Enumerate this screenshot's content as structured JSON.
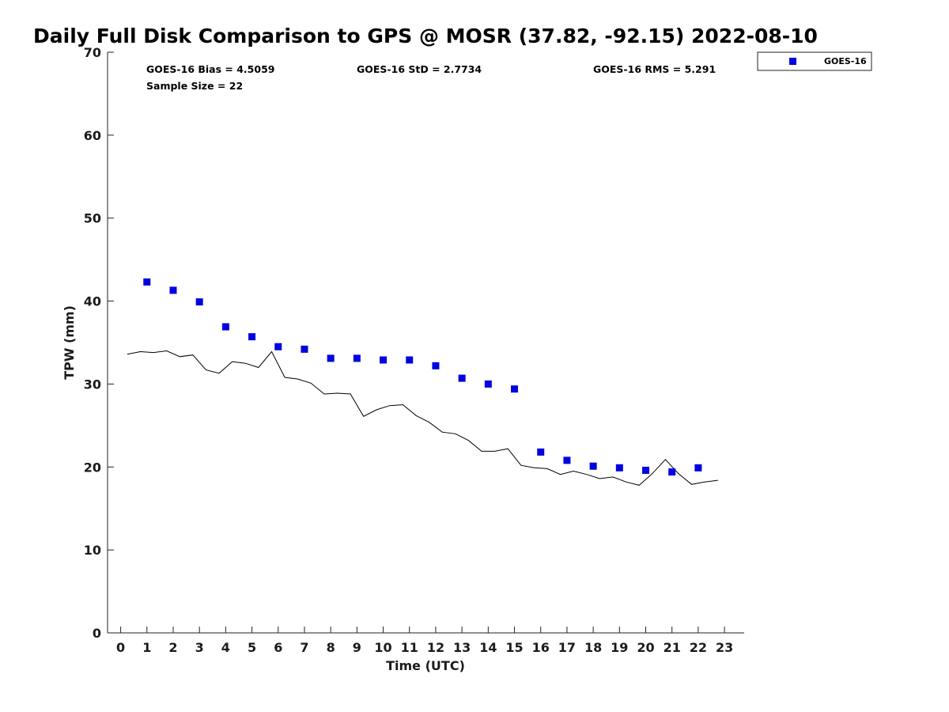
{
  "chart_data": {
    "type": "scatter",
    "title": "Daily Full Disk Comparison to GPS @ MOSR (37.82, -92.15) 2022-08-10",
    "xlabel": "Time (UTC)",
    "ylabel": "TPW (mm)",
    "xlim": [
      -0.5,
      23.75
    ],
    "ylim": [
      0,
      70
    ],
    "xticks": [
      "0",
      "1",
      "2",
      "3",
      "4",
      "5",
      "6",
      "7",
      "8",
      "9",
      "10",
      "11",
      "12",
      "13",
      "14",
      "15",
      "16",
      "17",
      "18",
      "19",
      "20",
      "21",
      "22",
      "23"
    ],
    "yticks": [
      "0",
      "10",
      "20",
      "30",
      "40",
      "50",
      "60",
      "70"
    ],
    "grid": false,
    "legend_position": "top-right",
    "stats": {
      "bias": "GOES-16 Bias = 4.5059",
      "std": "GOES-16 StD = 2.7734",
      "rms": "GOES-16 RMS = 5.291",
      "sample": "Sample Size = 22"
    },
    "series": [
      {
        "name": "GOES-16",
        "kind": "scatter",
        "marker": "square",
        "color": "#0000e0",
        "x": [
          1,
          2,
          3,
          4,
          5,
          6,
          7,
          8,
          9,
          10,
          11,
          12,
          13,
          14,
          15,
          16,
          17,
          18,
          19,
          20,
          21,
          22
        ],
        "y": [
          42.3,
          41.3,
          39.9,
          36.9,
          35.7,
          34.5,
          34.2,
          33.1,
          33.1,
          32.9,
          32.9,
          32.2,
          30.7,
          30.0,
          29.4,
          21.8,
          20.8,
          20.1,
          19.9,
          19.6,
          19.4,
          19.9
        ]
      },
      {
        "kind": "line",
        "color": "#000000",
        "x": [
          0.25,
          0.75,
          1.25,
          1.75,
          2.25,
          2.75,
          3.25,
          3.75,
          4.25,
          4.75,
          5.25,
          5.75,
          6.25,
          6.75,
          7.25,
          7.75,
          8.25,
          8.75,
          9.25,
          9.75,
          10.25,
          10.75,
          11.25,
          11.75,
          12.25,
          12.75,
          13.25,
          13.75,
          14.25,
          14.75,
          15.25,
          15.75,
          16.25,
          16.75,
          17.25,
          17.75,
          18.25,
          18.75,
          19.25,
          19.75,
          20.25,
          20.75,
          21.25,
          21.75,
          22.25,
          22.75
        ],
        "y": [
          33.6,
          33.9,
          33.8,
          34.0,
          33.3,
          33.5,
          31.7,
          31.3,
          32.7,
          32.5,
          32.0,
          33.9,
          30.8,
          30.6,
          30.1,
          28.8,
          28.9,
          28.8,
          26.1,
          26.9,
          27.4,
          27.5,
          26.2,
          25.4,
          24.2,
          24.0,
          23.2,
          21.9,
          21.9,
          22.2,
          20.2,
          19.9,
          19.8,
          19.1,
          19.5,
          19.1,
          18.6,
          18.8,
          18.2,
          17.8,
          19.2,
          20.9,
          19.2,
          17.9,
          18.2,
          18.4
        ]
      }
    ]
  }
}
